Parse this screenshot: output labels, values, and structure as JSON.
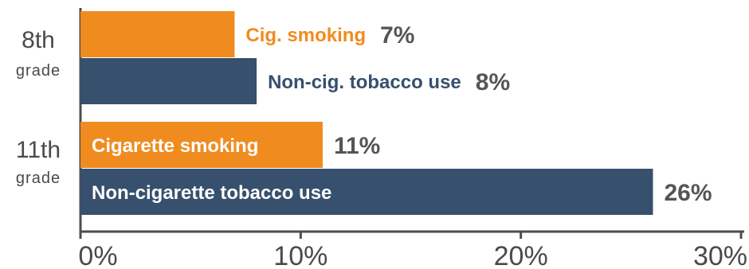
{
  "colors": {
    "cigarette": "#f08c1f",
    "non_cigarette": "#36506d",
    "axis": "#4d4d4d",
    "text": "#4a4a4a",
    "value_label": "#555555"
  },
  "chart_data": {
    "type": "bar",
    "orientation": "horizontal",
    "groups": [
      {
        "name_line1": "8th",
        "name_line2": "grade"
      },
      {
        "name_line1": "11th",
        "name_line2": "grade"
      }
    ],
    "bars": [
      {
        "group": 0,
        "series": "cigarette",
        "label": "Cig. smoking",
        "label_position": "outside",
        "value": 7,
        "value_label": "7%"
      },
      {
        "group": 0,
        "series": "non_cigarette",
        "label": "Non-cig. tobacco use",
        "label_position": "outside",
        "value": 8,
        "value_label": "8%"
      },
      {
        "group": 1,
        "series": "cigarette",
        "label": "Cigarette smoking",
        "label_position": "inside",
        "value": 11,
        "value_label": "11%"
      },
      {
        "group": 1,
        "series": "non_cigarette",
        "label": "Non-cigarette tobacco use",
        "label_position": "inside",
        "value": 26,
        "value_label": "26%"
      }
    ],
    "xlim": [
      0,
      30
    ],
    "ticks": [
      0,
      10,
      20,
      30
    ],
    "tick_labels": [
      "0%",
      "10%",
      "20%",
      "30%"
    ],
    "grid": false
  }
}
